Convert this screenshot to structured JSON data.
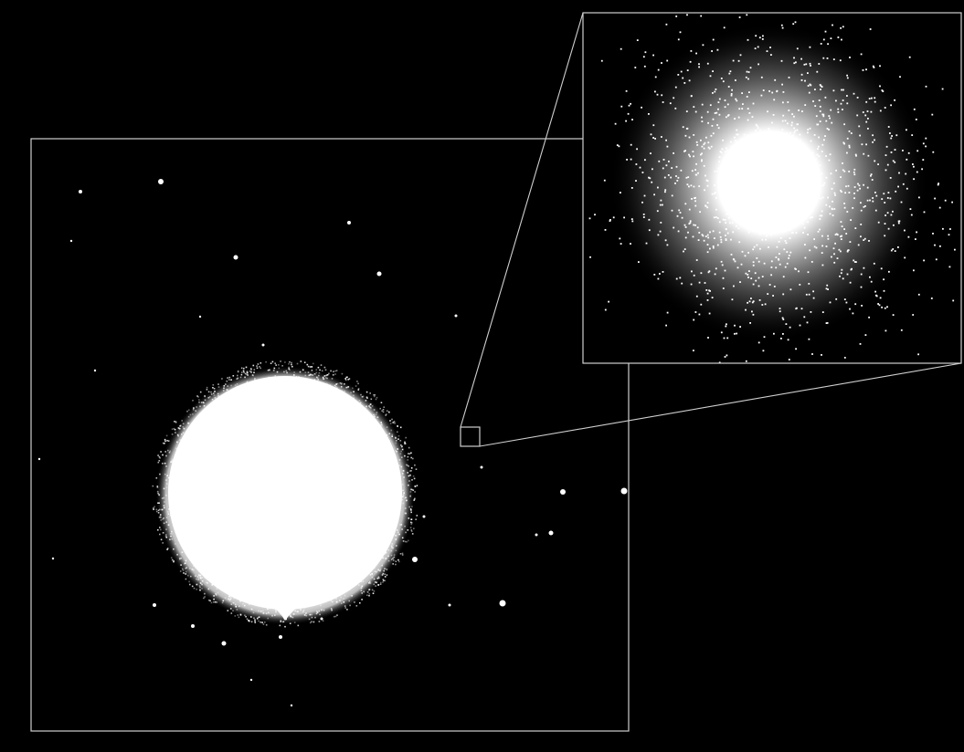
{
  "colors": {
    "background": "#000000",
    "frame_stroke": "#cfcfcf",
    "star": "#ffffff"
  },
  "panels": {
    "main": {
      "description_name": "main-field-panel"
    },
    "inset": {
      "description_name": "zoom-inset-panel"
    }
  }
}
